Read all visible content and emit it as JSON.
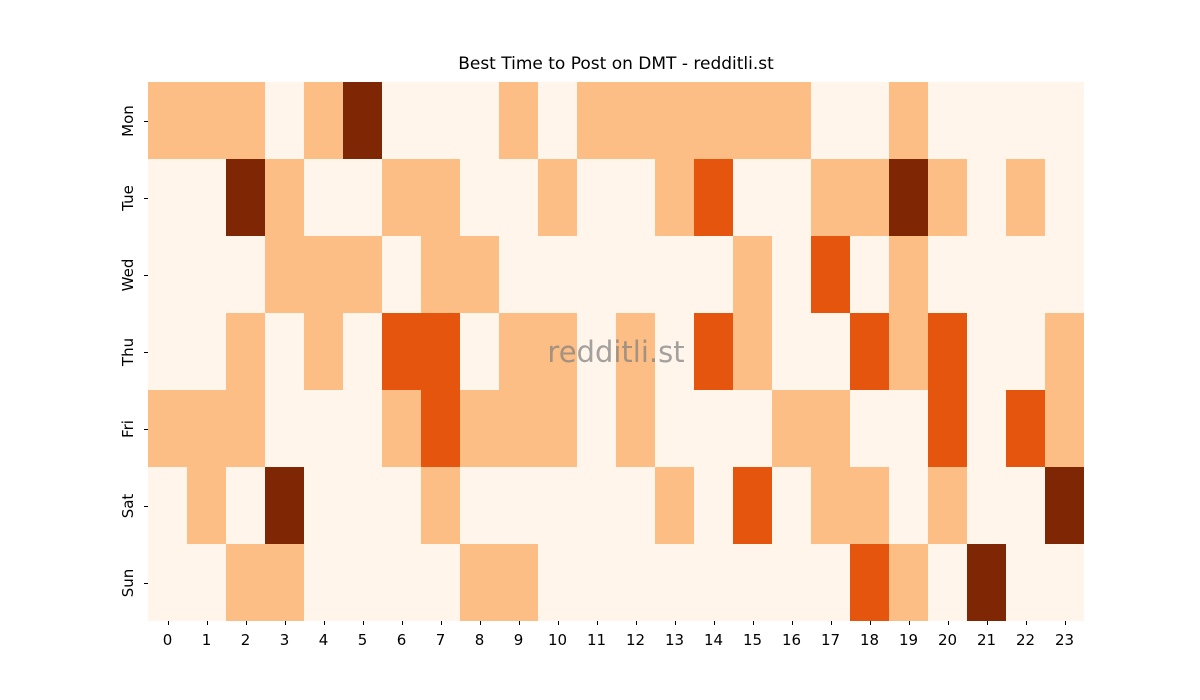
{
  "title": "Best Time to Post on DMT - redditli.st",
  "watermark": "redditli.st",
  "chart_data": {
    "type": "heatmap",
    "title": "Best Time to Post on DMT - redditli.st",
    "xlabel": "",
    "ylabel": "",
    "x_labels": [
      "0",
      "1",
      "2",
      "3",
      "4",
      "5",
      "6",
      "7",
      "8",
      "9",
      "10",
      "11",
      "12",
      "13",
      "14",
      "15",
      "16",
      "17",
      "18",
      "19",
      "20",
      "21",
      "22",
      "23"
    ],
    "y_labels": [
      "Mon",
      "Tue",
      "Wed",
      "Thu",
      "Fri",
      "Sat",
      "Sun"
    ],
    "colormap": "Oranges",
    "grid": false,
    "legend": "none",
    "level_colors": [
      "#fff5eb",
      "#fdbe85",
      "#e6550d",
      "#7f2704"
    ],
    "values": [
      [
        1,
        1,
        1,
        0,
        1,
        3,
        0,
        0,
        0,
        1,
        0,
        1,
        1,
        1,
        1,
        1,
        1,
        0,
        0,
        1,
        0,
        0,
        0,
        0
      ],
      [
        0,
        0,
        3,
        1,
        0,
        0,
        1,
        1,
        0,
        0,
        1,
        0,
        0,
        1,
        2,
        0,
        0,
        1,
        1,
        3,
        1,
        0,
        1,
        0
      ],
      [
        0,
        0,
        0,
        1,
        1,
        1,
        0,
        1,
        1,
        0,
        0,
        0,
        0,
        0,
        0,
        1,
        0,
        2,
        0,
        1,
        0,
        0,
        0,
        0
      ],
      [
        0,
        0,
        1,
        0,
        1,
        0,
        2,
        2,
        0,
        1,
        1,
        0,
        1,
        0,
        2,
        1,
        0,
        0,
        2,
        1,
        2,
        0,
        0,
        1
      ],
      [
        1,
        1,
        1,
        0,
        0,
        0,
        1,
        2,
        1,
        1,
        1,
        0,
        1,
        0,
        0,
        0,
        1,
        1,
        0,
        0,
        2,
        0,
        2,
        1
      ],
      [
        0,
        1,
        0,
        3,
        0,
        0,
        0,
        1,
        0,
        0,
        0,
        0,
        0,
        1,
        0,
        2,
        0,
        1,
        1,
        0,
        1,
        0,
        0,
        3
      ],
      [
        0,
        0,
        1,
        1,
        0,
        0,
        0,
        0,
        1,
        1,
        0,
        0,
        0,
        0,
        0,
        0,
        0,
        0,
        2,
        1,
        0,
        3,
        0,
        0
      ]
    ]
  }
}
